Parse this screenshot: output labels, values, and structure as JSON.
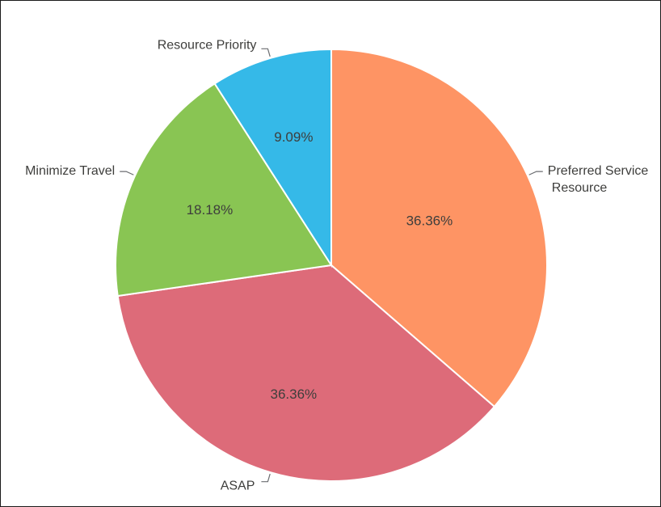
{
  "chart_data": {
    "type": "pie",
    "title": "",
    "slices": [
      {
        "label": "Preferred Service Resource",
        "label_lines": [
          "Preferred Service",
          "Resource"
        ],
        "value": 36.36,
        "display": "36.36%",
        "color": "#fe9464"
      },
      {
        "label": "ASAP",
        "label_lines": [
          "ASAP"
        ],
        "value": 36.36,
        "display": "36.36%",
        "color": "#dd6b79"
      },
      {
        "label": "Minimize Travel",
        "label_lines": [
          "Minimize Travel"
        ],
        "value": 18.18,
        "display": "18.18%",
        "color": "#89c553"
      },
      {
        "label": "Resource Priority",
        "label_lines": [
          "Resource Priority"
        ],
        "value": 9.09,
        "display": "9.09%",
        "color": "#35b9e8"
      }
    ],
    "start_angle": "top",
    "direction": "clockwise",
    "legend": "none"
  }
}
